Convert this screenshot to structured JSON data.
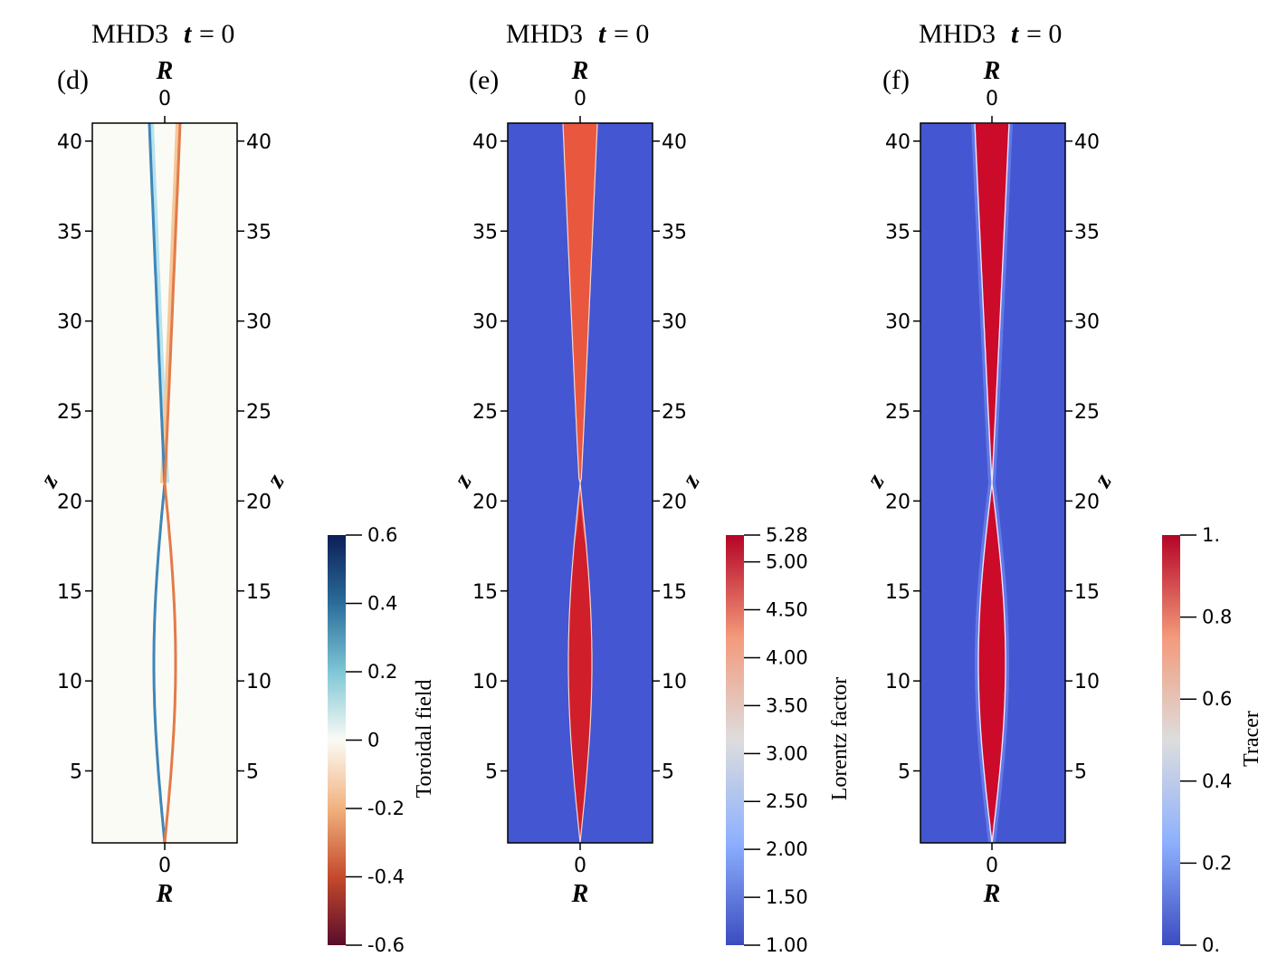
{
  "chart_data": [
    {
      "type": "heatmap",
      "panel": "(d)",
      "title_prefix": "MHD3",
      "title_var": "t",
      "title_suffix": "= 0",
      "xlabel": "R",
      "ylabel": "z",
      "x_ticks": [
        "0"
      ],
      "y_ticks": [
        5,
        10,
        15,
        20,
        25,
        30,
        35,
        40
      ],
      "ylim": [
        1,
        41
      ],
      "colorbar": {
        "label": "Toroidal field",
        "range": [
          -0.6,
          0.6
        ],
        "ticks": [
          "0.6",
          "0.4",
          "0.2",
          "0",
          "-0.2",
          "-0.4",
          "-0.6"
        ],
        "tick_values": [
          0.6,
          0.4,
          0.2,
          0,
          -0.2,
          -0.4,
          -0.6
        ],
        "colors": [
          "#0b1e57",
          "#2a6d9a",
          "#7fc6d6",
          "#fbfbf5",
          "#f1b27f",
          "#c44a2c",
          "#5a0c2c"
        ]
      },
      "field_colors": {
        "background": "#fbfbf5",
        "negative": "#3f86b8",
        "positive": "#e37a4a",
        "weak_negative": "#b6e3ee",
        "weak_positive": "#f5c89a"
      }
    },
    {
      "type": "heatmap",
      "panel": "(e)",
      "title_prefix": "MHD3",
      "title_var": "t",
      "title_suffix": "= 0",
      "xlabel": "R",
      "ylabel": "z",
      "x_ticks": [
        "0"
      ],
      "y_ticks": [
        5,
        10,
        15,
        20,
        25,
        30,
        35,
        40
      ],
      "ylim": [
        1,
        41
      ],
      "colorbar": {
        "label": "Lorentz factor",
        "range": [
          1.0,
          5.28
        ],
        "ticks": [
          "5.28",
          "5.00",
          "4.50",
          "4.00",
          "3.50",
          "3.00",
          "2.50",
          "2.00",
          "1.50",
          "1.00"
        ],
        "tick_values": [
          5.28,
          5.0,
          4.5,
          4.0,
          3.5,
          3.0,
          2.5,
          2.0,
          1.5,
          1.0
        ],
        "colors": [
          "#3b4cc0",
          "#8db0fe",
          "#dddddd",
          "#f49a7b",
          "#b40426"
        ]
      },
      "field_colors": {
        "background": "#4456d2",
        "upper_jet": "#e9573f",
        "lower_jet": "#d01e2b"
      }
    },
    {
      "type": "heatmap",
      "panel": "(f)",
      "title_prefix": "MHD3",
      "title_var": "t",
      "title_suffix": "= 0",
      "xlabel": "R",
      "ylabel": "z",
      "x_ticks": [
        "0"
      ],
      "y_ticks": [
        5,
        10,
        15,
        20,
        25,
        30,
        35,
        40
      ],
      "ylim": [
        1,
        41
      ],
      "colorbar": {
        "label": "Tracer",
        "range": [
          0,
          1
        ],
        "ticks": [
          "1.",
          "0.8",
          "0.6",
          "0.4",
          "0.2",
          "0."
        ],
        "tick_values": [
          1.0,
          0.8,
          0.6,
          0.4,
          0.2,
          0.0
        ],
        "colors": [
          "#3b4cc0",
          "#8db0fe",
          "#dddddd",
          "#f49a7b",
          "#b40426"
        ]
      },
      "field_colors": {
        "background": "#4456d2",
        "jet": "#cc0a2a",
        "halo": "#6d87ee"
      }
    }
  ]
}
